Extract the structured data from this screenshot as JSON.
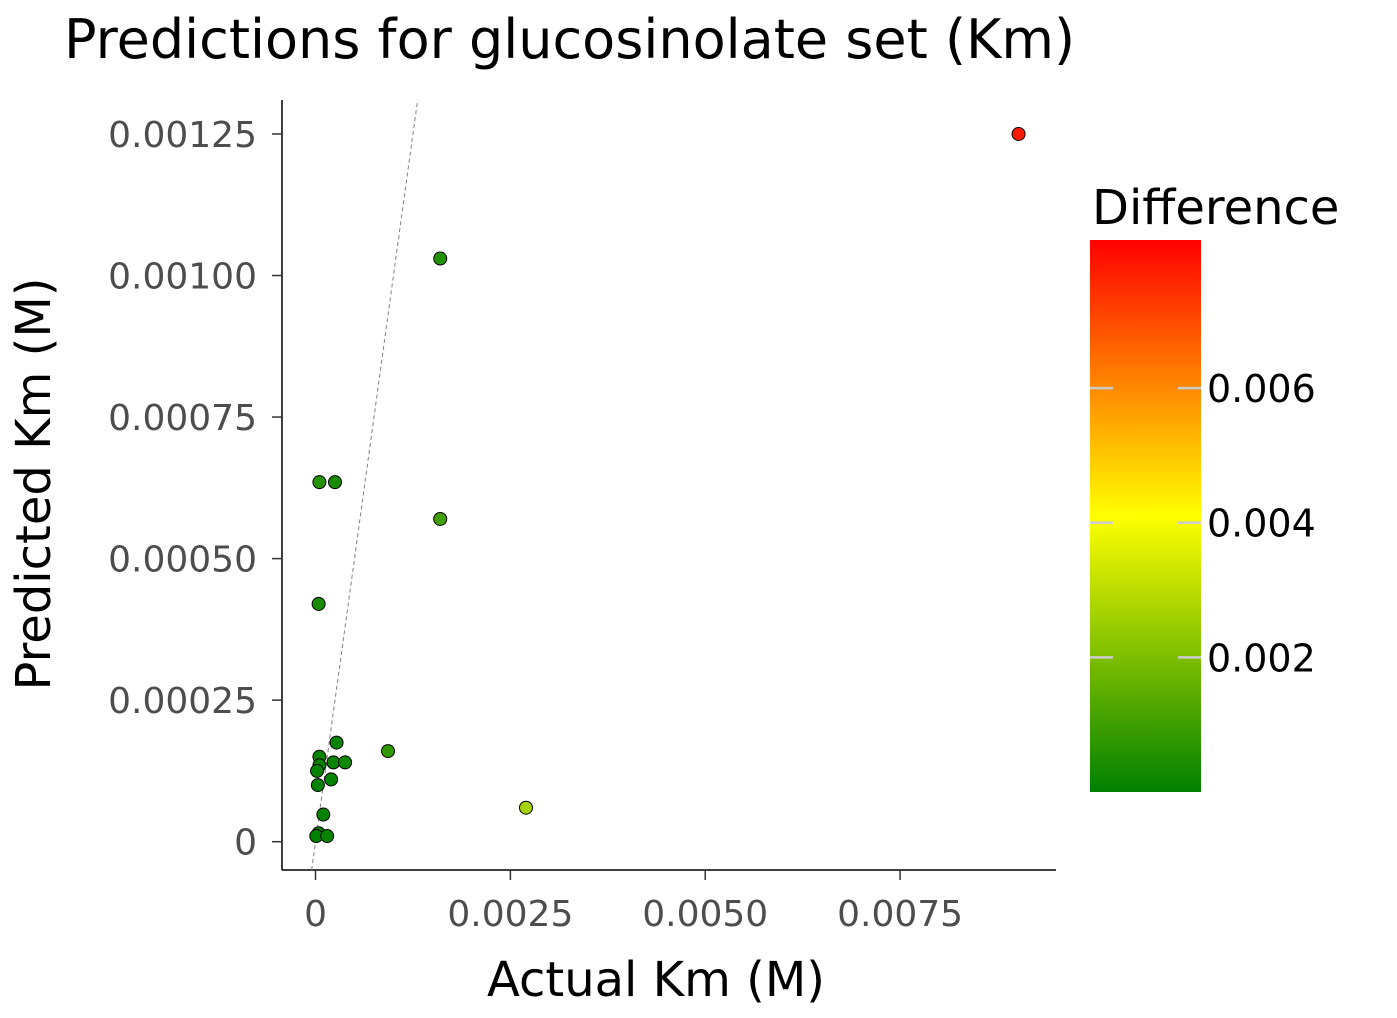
{
  "chart_data": {
    "type": "scatter",
    "title": "Predictions for glucosinolate set (Km)",
    "xlabel": "Actual Km (M)",
    "ylabel": "Predicted Km (M)",
    "xlim": [
      -0.00043,
      0.0095
    ],
    "ylim": [
      -5e-05,
      0.00131
    ],
    "x_ticks": [
      {
        "value": 0,
        "label": "0"
      },
      {
        "value": 0.0025,
        "label": "0.0025"
      },
      {
        "value": 0.005,
        "label": "0.0050"
      },
      {
        "value": 0.0075,
        "label": "0.0075"
      }
    ],
    "y_ticks": [
      {
        "value": 0,
        "label": "0"
      },
      {
        "value": 0.00025,
        "label": "0.00025"
      },
      {
        "value": 0.0005,
        "label": "0.00050"
      },
      {
        "value": 0.00075,
        "label": "0.00075"
      },
      {
        "value": 0.001,
        "label": "0.00100"
      },
      {
        "value": 0.00125,
        "label": "0.00125"
      }
    ],
    "reference_line": {
      "style": "dashed",
      "color": "#808080",
      "description": "y = x"
    },
    "grid": false,
    "legend": {
      "title": "Difference",
      "placement": "right",
      "type": "colorbar",
      "range": [
        0,
        0.0082
      ],
      "ticks": [
        {
          "value": 0.002,
          "label": "0.002"
        },
        {
          "value": 0.004,
          "label": "0.004"
        },
        {
          "value": 0.006,
          "label": "0.006"
        }
      ],
      "colors": [
        "#008000",
        "#ffff00",
        "#ff0000"
      ]
    },
    "points": [
      {
        "x": 0.00902,
        "y": 0.00125,
        "difference": 0.00777
      },
      {
        "x": 0.0016,
        "y": 0.00103,
        "difference": 0.00057
      },
      {
        "x": 0.0016,
        "y": 0.00057,
        "difference": 0.00103
      },
      {
        "x": 0.0027,
        "y": 6e-05,
        "difference": 0.00264
      },
      {
        "x": 5e-05,
        "y": 0.000635,
        "difference": 0.00059
      },
      {
        "x": 0.00025,
        "y": 0.000635,
        "difference": 0.00039
      },
      {
        "x": 4e-05,
        "y": 0.00042,
        "difference": 0.00038
      },
      {
        "x": 0.00093,
        "y": 0.00016,
        "difference": 0.00077
      },
      {
        "x": 0.00027,
        "y": 0.000175,
        "difference": 0.0001
      },
      {
        "x": 5e-05,
        "y": 0.00015,
        "difference": 0.0001
      },
      {
        "x": 0.00023,
        "y": 0.00014,
        "difference": 9e-05
      },
      {
        "x": 0.00038,
        "y": 0.00014,
        "difference": 0.00024
      },
      {
        "x": 5e-05,
        "y": 0.000135,
        "difference": 9e-05
      },
      {
        "x": 2e-05,
        "y": 0.000125,
        "difference": 0.0001
      },
      {
        "x": 0.0002,
        "y": 0.00011,
        "difference": 9e-05
      },
      {
        "x": 3e-05,
        "y": 0.0001,
        "difference": 7e-05
      },
      {
        "x": 0.0001,
        "y": 4.8e-05,
        "difference": 5e-05
      },
      {
        "x": 4e-05,
        "y": 1.5e-05,
        "difference": 3e-05
      },
      {
        "x": 1e-05,
        "y": 1e-05,
        "difference": 0.0
      },
      {
        "x": 0.00015,
        "y": 1e-05,
        "difference": 0.00014
      }
    ]
  }
}
